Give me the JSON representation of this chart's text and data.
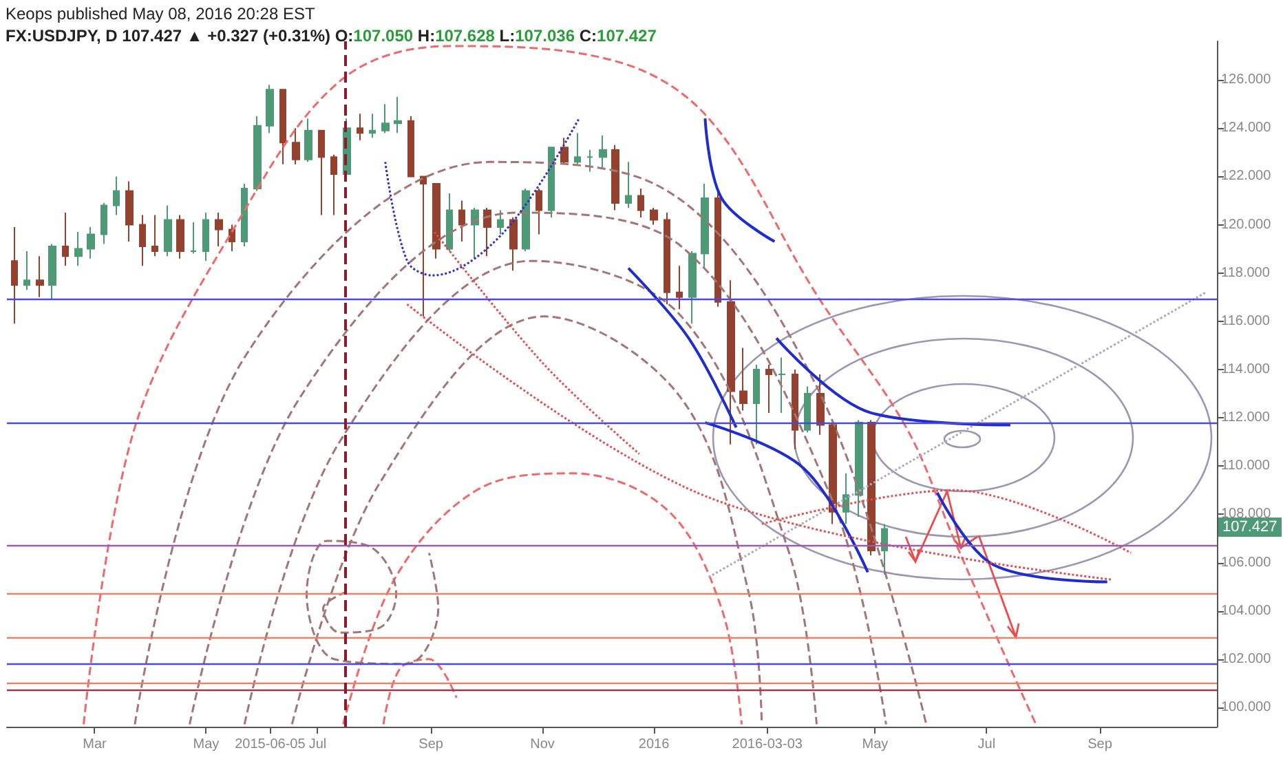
{
  "chart_data": {
    "type": "candlestick",
    "title": "Keops published May 08, 2016 20:28 EST",
    "subtitle": "FX:USDJPY, D 107.427 ▲ +0.327 (+0.31%) O:107.050 H:107.628 L:107.036 C:107.427",
    "x": [
      "2015-01-16",
      "2015-01-23",
      "2015-01-30",
      "2015-02-06",
      "2015-02-13",
      "2015-02-20",
      "2015-02-27",
      "2015-03-06",
      "2015-03-13",
      "2015-03-20",
      "2015-03-27",
      "2015-04-03",
      "2015-04-10",
      "2015-04-17",
      "2015-04-24",
      "2015-05-01",
      "2015-05-08",
      "2015-05-15",
      "2015-05-22",
      "2015-05-29",
      "2015-06-05",
      "2015-06-12",
      "2015-06-19",
      "2015-06-26",
      "2015-07-03",
      "2015-07-10",
      "2015-07-17",
      "2015-07-24",
      "2015-07-31",
      "2015-08-07",
      "2015-08-14",
      "2015-08-21",
      "2015-08-28",
      "2015-09-04",
      "2015-09-11",
      "2015-09-18",
      "2015-09-25",
      "2015-10-02",
      "2015-10-09",
      "2015-10-16",
      "2015-10-23",
      "2015-10-30",
      "2015-11-06",
      "2015-11-13",
      "2015-11-20",
      "2015-11-27",
      "2015-12-04",
      "2015-12-11",
      "2015-12-18",
      "2015-12-25",
      "2016-01-01",
      "2016-01-08",
      "2016-01-15",
      "2016-01-22",
      "2016-01-29",
      "2016-02-05",
      "2016-02-12",
      "2016-02-19",
      "2016-02-26",
      "2016-03-04",
      "2016-03-11",
      "2016-03-18",
      "2016-03-25",
      "2016-04-01",
      "2016-04-08",
      "2016-04-15",
      "2016-04-22",
      "2016-04-29",
      "2016-05-06"
    ],
    "ohlc": [
      [
        118.5,
        119.9,
        115.9,
        117.5
      ],
      [
        117.5,
        118.9,
        117.3,
        117.7
      ],
      [
        117.7,
        118.7,
        117.0,
        117.5
      ],
      [
        117.5,
        119.2,
        116.9,
        119.1
      ],
      [
        119.1,
        120.5,
        118.3,
        118.7
      ],
      [
        118.7,
        119.7,
        118.3,
        119.0
      ],
      [
        119.0,
        119.9,
        118.6,
        119.6
      ],
      [
        119.6,
        120.9,
        119.2,
        120.8
      ],
      [
        120.8,
        122.0,
        120.4,
        121.4
      ],
      [
        121.4,
        121.8,
        119.3,
        120.0
      ],
      [
        120.0,
        120.4,
        118.3,
        119.1
      ],
      [
        119.1,
        120.4,
        118.7,
        118.9
      ],
      [
        118.9,
        120.8,
        118.7,
        120.2
      ],
      [
        120.2,
        120.4,
        118.6,
        118.9
      ],
      [
        118.9,
        120.1,
        118.8,
        118.9
      ],
      [
        118.9,
        120.5,
        118.5,
        120.2
      ],
      [
        120.2,
        120.5,
        119.1,
        119.8
      ],
      [
        119.8,
        120.0,
        118.9,
        119.3
      ],
      [
        119.3,
        121.7,
        119.1,
        121.5
      ],
      [
        121.5,
        124.5,
        121.4,
        124.1
      ],
      [
        124.1,
        125.8,
        123.8,
        125.6
      ],
      [
        125.6,
        125.6,
        122.5,
        123.4
      ],
      [
        123.4,
        124.0,
        122.5,
        122.7
      ],
      [
        122.7,
        124.4,
        122.6,
        123.9
      ],
      [
        123.9,
        123.9,
        120.4,
        122.8
      ],
      [
        122.8,
        122.9,
        120.4,
        122.1
      ],
      [
        122.1,
        124.4,
        122.0,
        124.0
      ],
      [
        124.0,
        124.6,
        123.5,
        123.8
      ],
      [
        123.8,
        124.6,
        123.6,
        123.9
      ],
      [
        123.9,
        125.0,
        123.8,
        124.2
      ],
      [
        124.2,
        125.3,
        123.8,
        124.3
      ],
      [
        124.3,
        124.5,
        122.0,
        122.0
      ],
      [
        122.0,
        122.0,
        116.2,
        121.7
      ],
      [
        121.7,
        121.7,
        118.6,
        119.0
      ],
      [
        119.0,
        121.3,
        118.9,
        120.6
      ],
      [
        120.6,
        121.0,
        119.3,
        120.0
      ],
      [
        120.0,
        120.7,
        118.6,
        120.6
      ],
      [
        120.6,
        120.7,
        118.7,
        119.9
      ],
      [
        119.9,
        120.6,
        119.6,
        120.2
      ],
      [
        120.2,
        120.3,
        118.1,
        119.0
      ],
      [
        119.0,
        121.5,
        118.9,
        121.4
      ],
      [
        121.4,
        121.5,
        119.6,
        120.6
      ],
      [
        120.6,
        123.2,
        120.3,
        123.2
      ],
      [
        123.2,
        123.6,
        122.5,
        122.6
      ],
      [
        122.6,
        123.8,
        122.5,
        122.8
      ],
      [
        122.8,
        123.1,
        122.2,
        122.8
      ],
      [
        122.8,
        123.7,
        122.3,
        123.1
      ],
      [
        123.1,
        123.3,
        120.6,
        120.9
      ],
      [
        120.9,
        122.6,
        120.7,
        121.2
      ],
      [
        121.2,
        121.5,
        120.3,
        120.6
      ],
      [
        120.6,
        120.7,
        120.0,
        120.2
      ],
      [
        120.2,
        120.5,
        116.7,
        117.2
      ],
      [
        117.2,
        118.3,
        116.5,
        117.0
      ],
      [
        117.0,
        118.9,
        115.9,
        118.8
      ],
      [
        118.8,
        121.7,
        118.2,
        121.1
      ],
      [
        121.1,
        121.5,
        116.6,
        116.8
      ],
      [
        116.8,
        117.7,
        110.9,
        113.1
      ],
      [
        113.1,
        114.9,
        112.3,
        112.6
      ],
      [
        112.6,
        114.2,
        110.9,
        114.0
      ],
      [
        114.0,
        114.2,
        112.2,
        113.8
      ],
      [
        113.8,
        114.5,
        112.2,
        113.8
      ],
      [
        113.8,
        114.0,
        110.7,
        111.5
      ],
      [
        111.5,
        113.3,
        111.4,
        113.0
      ],
      [
        113.0,
        113.8,
        111.3,
        111.7
      ],
      [
        111.7,
        111.8,
        107.6,
        108.1
      ],
      [
        108.1,
        109.7,
        107.6,
        108.8
      ],
      [
        108.8,
        111.9,
        107.9,
        111.8
      ],
      [
        111.8,
        111.9,
        106.3,
        106.5
      ],
      [
        106.5,
        107.6,
        105.5,
        107.4
      ]
    ],
    "colors": [
      "#93422f",
      "#4e9a78",
      "#93422f",
      "#4e9a78",
      "#93422f",
      "#4e9a78",
      "#4e9a78",
      "#4e9a78",
      "#4e9a78",
      "#93422f",
      "#93422f",
      "#93422f",
      "#4e9a78",
      "#93422f",
      "#4e9a78",
      "#4e9a78",
      "#93422f",
      "#93422f",
      "#4e9a78",
      "#4e9a78",
      "#4e9a78",
      "#93422f",
      "#93422f",
      "#4e9a78",
      "#93422f",
      "#93422f",
      "#4e9a78",
      "#93422f",
      "#4e9a78",
      "#4e9a78",
      "#4e9a78",
      "#93422f",
      "#93422f",
      "#93422f",
      "#4e9a78",
      "#93422f",
      "#4e9a78",
      "#93422f",
      "#4e9a78",
      "#93422f",
      "#4e9a78",
      "#93422f",
      "#4e9a78",
      "#93422f",
      "#4e9a78",
      "#4e9a78",
      "#4e9a78",
      "#93422f",
      "#4e9a78",
      "#93422f",
      "#93422f",
      "#93422f",
      "#93422f",
      "#4e9a78",
      "#4e9a78",
      "#93422f",
      "#93422f",
      "#93422f",
      "#4e9a78",
      "#93422f",
      "#4e9a78",
      "#93422f",
      "#4e9a78",
      "#93422f",
      "#93422f",
      "#4e9a78",
      "#4e9a78",
      "#93422f",
      "#4e9a78"
    ],
    "xlim": [
      "2015-01-12",
      "2016-11-04"
    ],
    "xticks": [
      {
        "value": "2015-03-01",
        "label": "Mar"
      },
      {
        "value": "2015-05-01",
        "label": "May"
      },
      {
        "value": "2015-06-05",
        "label": "2015-06-05"
      },
      {
        "value": "2015-07-01",
        "label": "Jul"
      },
      {
        "value": "2015-09-01",
        "label": "Sep"
      },
      {
        "value": "2015-11-01",
        "label": "Nov"
      },
      {
        "value": "2016-01-01",
        "label": "2016"
      },
      {
        "value": "2016-03-03",
        "label": "2016-03-03"
      },
      {
        "value": "2016-05-01",
        "label": "May"
      },
      {
        "value": "2016-07-01",
        "label": "Jul"
      },
      {
        "value": "2016-09-01",
        "label": "Sep"
      }
    ],
    "ylim": [
      99.2,
      127.6
    ],
    "yticks": [
      {
        "value": 100,
        "label": "100.000"
      },
      {
        "value": 102,
        "label": "102.000"
      },
      {
        "value": 104,
        "label": "104.000"
      },
      {
        "value": 106,
        "label": "106.000"
      },
      {
        "value": 108,
        "label": "108.000"
      },
      {
        "value": 110,
        "label": "110.000"
      },
      {
        "value": 112,
        "label": "112.000"
      },
      {
        "value": 114,
        "label": "114.000"
      },
      {
        "value": 116,
        "label": "116.000"
      },
      {
        "value": 118,
        "label": "118.000"
      },
      {
        "value": 120,
        "label": "120.000"
      },
      {
        "value": 122,
        "label": "122.000"
      },
      {
        "value": 124,
        "label": "124.000"
      },
      {
        "value": 126,
        "label": "126.000"
      }
    ],
    "ref_lines": [
      {
        "axis": "y",
        "value": 116.9,
        "color": "#4a4ae0",
        "line_style": "solid"
      },
      {
        "axis": "y",
        "value": 111.8,
        "color": "#4a4ae0",
        "line_style": "solid"
      },
      {
        "axis": "y",
        "value": 106.7,
        "color": "#9a5ab0",
        "line_style": "solid"
      },
      {
        "axis": "y",
        "value": 104.7,
        "color": "#e8806e",
        "line_style": "solid"
      },
      {
        "axis": "y",
        "value": 102.9,
        "color": "#e8806e",
        "line_style": "solid"
      },
      {
        "axis": "y",
        "value": 101.8,
        "color": "#4a4ae0",
        "line_style": "solid"
      },
      {
        "axis": "y",
        "value": 101.0,
        "color": "#e8806e",
        "line_style": "solid"
      },
      {
        "axis": "y",
        "value": 100.7,
        "color": "#9a3a50",
        "line_style": "solid"
      },
      {
        "axis": "x",
        "value": "2015-07-16",
        "color": "#8b1a2b",
        "line_style": "dashed"
      }
    ],
    "series": [
      {
        "type": "line",
        "color": "#ee6a6a",
        "line_style": "dashed",
        "marker": "none",
        "x": [
          "2015-02-23",
          "2015-03-23",
          "2015-05-19",
          "2015-07-14",
          "2015-09-11",
          "2015-12-10",
          "2016-01-31",
          "2016-03-30",
          "2016-05-18",
          "2016-06-13",
          "2016-07-13",
          "2016-07-28"
        ],
        "values": [
          99.3,
          111.6,
          120.2,
          126.0,
          127.4,
          126.8,
          124.4,
          117.1,
          111.6,
          107.0,
          101.8,
          99.3
        ]
      },
      {
        "type": "line",
        "color": "#ee6a6a",
        "line_style": "dashed",
        "marker": "none",
        "x": [
          "2015-07-15",
          "2015-08-12",
          "2015-09-26",
          "2015-11-17",
          "2016-01-08",
          "2016-02-07",
          "2016-02-18"
        ],
        "values": [
          99.3,
          105.3,
          109.0,
          109.7,
          108.2,
          104.1,
          99.3
        ]
      },
      {
        "type": "line",
        "color": "#ee6a6a",
        "line_style": "dashed",
        "marker": "none",
        "x": [
          "2015-08-06",
          "2015-08-15",
          "2015-08-31",
          "2015-09-15"
        ],
        "values": [
          99.3,
          101.6,
          102.0,
          100.4
        ]
      },
      {
        "type": "line",
        "color": "#a37575",
        "line_style": "dashed",
        "marker": "none",
        "x": [
          "2015-03-23",
          "2015-05-22",
          "2015-10-03",
          "2016-01-01",
          "2016-03-30",
          "2016-05-29"
        ],
        "values": [
          99.3,
          114.5,
          122.6,
          121.7,
          113.3,
          99.3
        ]
      },
      {
        "type": "line",
        "color": "#a37575",
        "line_style": "dashed",
        "marker": "none",
        "x": [
          "2015-04-22",
          "2015-06-21",
          "2015-10-18",
          "2016-01-16",
          "2016-04-07",
          "2016-05-07"
        ],
        "values": [
          99.3,
          112.8,
          120.5,
          119.1,
          108.7,
          99.3
        ]
      },
      {
        "type": "line",
        "color": "#a37575",
        "line_style": "dashed",
        "marker": "none",
        "x": [
          "2015-05-22",
          "2015-07-13",
          "2015-10-26",
          "2016-01-16",
          "2016-03-15",
          "2016-03-30"
        ],
        "values": [
          99.3,
          111.0,
          118.5,
          116.2,
          106.4,
          99.3
        ]
      },
      {
        "type": "line",
        "color": "#a37575",
        "line_style": "dashed",
        "marker": "none",
        "x": [
          "2015-06-17",
          "2015-08-04",
          "2015-11-02",
          "2016-01-16",
          "2016-02-22",
          "2016-02-29"
        ],
        "values": [
          99.3,
          109.3,
          116.2,
          112.8,
          104.7,
          99.3
        ]
      },
      {
        "type": "line",
        "color": "#a37575",
        "line_style": "dashed",
        "marker": "none",
        "x": [
          "2015-07-17",
          "2015-07-04",
          "2015-07-13",
          "2015-08-04",
          "2015-08-13",
          "2015-07-31",
          "2015-07-06",
          "2015-06-25",
          "2015-07-10",
          "2015-08-19",
          "2015-09-05",
          "2015-08-31"
        ],
        "values": [
          104.8,
          104.1,
          103.1,
          103.3,
          104.7,
          106.6,
          106.9,
          104.7,
          102.0,
          101.8,
          104.1,
          106.4
        ]
      },
      {
        "type": "line",
        "color": "#b0a8b8",
        "line_style": "dotted",
        "marker": "none",
        "x": [
          "2016-01-31",
          "2016-10-29"
        ],
        "values": [
          105.4,
          117.2
        ]
      },
      {
        "type": "line",
        "color": "#1f2dd0",
        "line_style": "solid",
        "marker": "none",
        "x": [
          "2016-01-29",
          "2016-02-07",
          "2016-03-07"
        ],
        "values": [
          124.4,
          121.1,
          119.3
        ]
      },
      {
        "type": "line",
        "color": "#1f2dd0",
        "line_style": "solid",
        "marker": "none",
        "x": [
          "2015-12-18",
          "2016-01-20",
          "2016-02-15"
        ],
        "values": [
          118.2,
          115.3,
          111.6
        ]
      },
      {
        "type": "line",
        "color": "#1f2dd0",
        "line_style": "solid",
        "marker": "none",
        "x": [
          "2016-01-29",
          "2016-03-23",
          "2016-04-27"
        ],
        "values": [
          111.8,
          109.9,
          105.6
        ]
      },
      {
        "type": "line",
        "color": "#1f2dd0",
        "line_style": "solid",
        "marker": "none",
        "x": [
          "2016-03-08",
          "2016-04-29",
          "2016-07-14"
        ],
        "values": [
          115.3,
          112.2,
          111.7
        ]
      },
      {
        "type": "line",
        "color": "#1f2dd0",
        "line_style": "solid",
        "marker": "none",
        "x": [
          "2016-06-04",
          "2016-07-05",
          "2016-09-05"
        ],
        "values": [
          108.9,
          105.9,
          105.2
        ]
      },
      {
        "type": "line",
        "color": "#3030c8",
        "line_style": "dotted",
        "marker": "none",
        "x": [
          "2015-08-07",
          "2015-08-19",
          "2015-09-02",
          "2015-10-11",
          "2015-11-21"
        ],
        "values": [
          122.6,
          118.5,
          117.9,
          119.7,
          124.4
        ]
      },
      {
        "type": "line",
        "color": "#e05050",
        "line_style": "dotted",
        "marker": "none",
        "x": [
          "2015-09-03",
          "2015-11-02",
          "2015-12-24"
        ],
        "values": [
          119.7,
          114.2,
          110.5
        ]
      },
      {
        "type": "line",
        "color": "#e05050",
        "line_style": "dotted",
        "marker": "none",
        "x": [
          "2015-08-19",
          "2016-01-31",
          "2016-09-07"
        ],
        "values": [
          116.7,
          108.7,
          105.3
        ]
      },
      {
        "type": "line",
        "color": "#e05050",
        "line_style": "dotted",
        "marker": "none",
        "x": [
          "2016-02-29",
          "2016-06-13",
          "2016-09-18"
        ],
        "values": [
          107.6,
          109.0,
          106.4
        ]
      }
    ],
    "annotations": [
      "107.427"
    ],
    "grid": false
  }
}
